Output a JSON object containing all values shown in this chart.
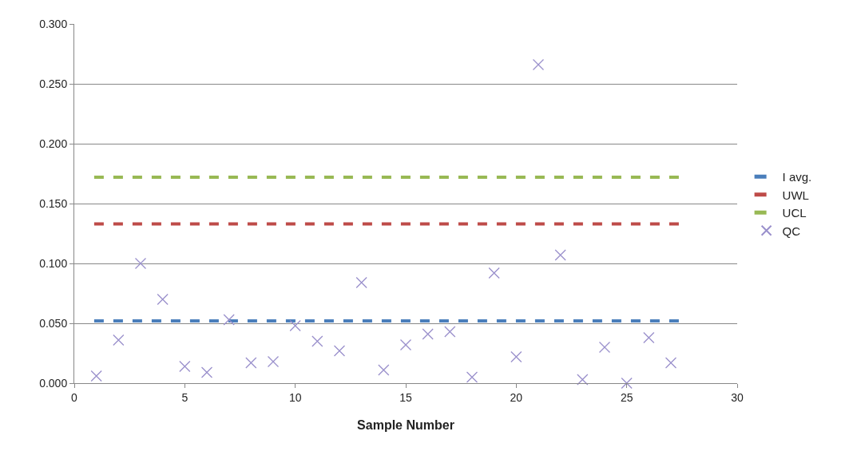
{
  "chart_data": {
    "type": "line",
    "xlabel": "Sample Number",
    "xlim": [
      0,
      30
    ],
    "xticks": [
      0,
      5,
      10,
      15,
      20,
      25,
      30
    ],
    "ylim": [
      0,
      0.3
    ],
    "yticks": [
      {
        "value": 0,
        "label": "0.000"
      },
      {
        "value": 0.05,
        "label": "0.050"
      },
      {
        "value": 0.1,
        "label": "0.100"
      },
      {
        "value": 0.15,
        "label": "0.150"
      },
      {
        "value": 0.2,
        "label": "0.200"
      },
      {
        "value": 0.25,
        "label": "0.250"
      },
      {
        "value": 0.3,
        "label": "0.300"
      }
    ],
    "grid": "y",
    "legend": "right",
    "series": [
      {
        "name": "I avg.",
        "color": "#4a7ebb",
        "line_style": "dashed",
        "marker": "none",
        "x": [
          0.9,
          27.5
        ],
        "values": [
          0.052,
          0.052
        ]
      },
      {
        "name": "UWL",
        "color": "#be4b48",
        "line_style": "dashed",
        "marker": "none",
        "x": [
          0.9,
          27.5
        ],
        "values": [
          0.133,
          0.133
        ]
      },
      {
        "name": "UCL",
        "color": "#98b954",
        "line_style": "dashed",
        "marker": "none",
        "x": [
          0.9,
          27.5
        ],
        "values": [
          0.172,
          0.172
        ]
      },
      {
        "name": "QC",
        "color": "#9a90cc",
        "type": "scatter",
        "marker": "cross",
        "x": [
          1,
          2,
          3,
          4,
          5,
          6,
          7,
          8,
          9,
          10,
          11,
          12,
          13,
          14,
          15,
          16,
          17,
          18,
          19,
          20,
          21,
          22,
          23,
          24,
          25,
          26,
          27
        ],
        "values": [
          0.006,
          0.036,
          0.1,
          0.07,
          0.014,
          0.009,
          0.053,
          0.017,
          0.018,
          0.048,
          0.035,
          0.027,
          0.084,
          0.011,
          0.032,
          0.041,
          0.043,
          0.005,
          0.092,
          0.022,
          0.266,
          0.107,
          0.003,
          0.03,
          0,
          0.038,
          0.017
        ]
      }
    ]
  }
}
